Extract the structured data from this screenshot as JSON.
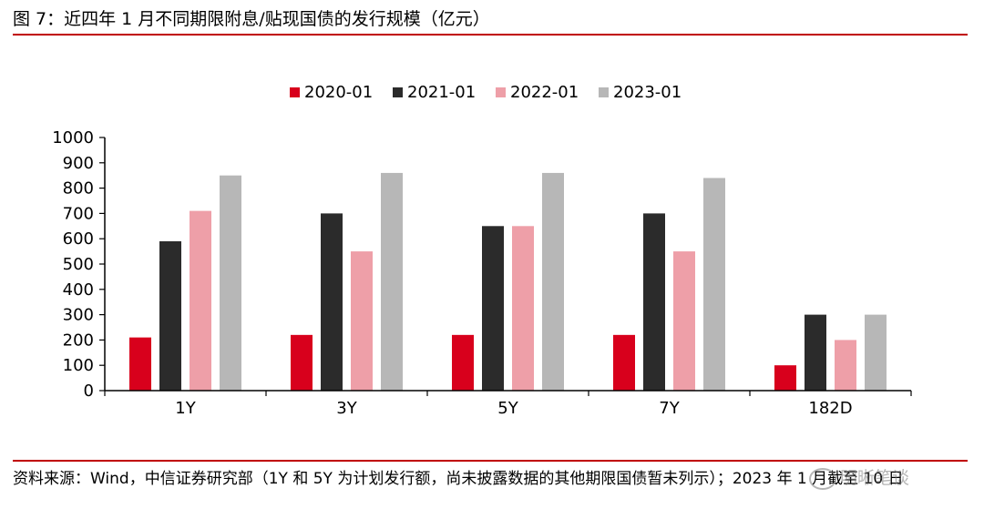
{
  "figure": {
    "title": "图 7：近四年 1 月不同期限附息/贴现国债的发行规模（亿元）",
    "source": "资料来源：Wind，中信证券研究部（1Y 和 5Y 为计划发行额，尚未披露数据的其他期限国债暂未列示）；2023 年 1 月截至 10 日",
    "watermark": "明晰笔谈"
  },
  "colors": {
    "rule": "#c00000",
    "series": [
      "#d8001c",
      "#2b2b2b",
      "#ee9fa8",
      "#b7b7b7"
    ]
  },
  "chart_data": {
    "type": "bar",
    "categories": [
      "1Y",
      "3Y",
      "5Y",
      "7Y",
      "182D"
    ],
    "series": [
      {
        "name": "2020-01",
        "values": [
          210,
          220,
          220,
          220,
          100
        ]
      },
      {
        "name": "2021-01",
        "values": [
          590,
          700,
          650,
          700,
          300
        ]
      },
      {
        "name": "2022-01",
        "values": [
          710,
          550,
          650,
          550,
          200
        ]
      },
      {
        "name": "2023-01",
        "values": [
          850,
          860,
          860,
          840,
          300
        ]
      }
    ],
    "ylim": [
      0,
      1000
    ],
    "yticks": [
      0,
      100,
      200,
      300,
      400,
      500,
      600,
      700,
      800,
      900,
      1000
    ],
    "grid": false,
    "legend_position": "top"
  }
}
